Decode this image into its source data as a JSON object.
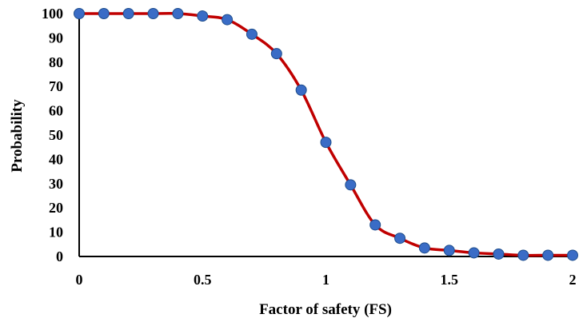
{
  "chart_data": {
    "type": "line",
    "title": "",
    "xlabel": "Factor of safety (FS)",
    "ylabel": "Probability",
    "xlim": [
      0,
      2
    ],
    "ylim": [
      0,
      100
    ],
    "x_ticks": [
      0,
      0.5,
      1,
      1.5,
      2
    ],
    "y_ticks": [
      0,
      10,
      20,
      30,
      40,
      50,
      60,
      70,
      80,
      90,
      100
    ],
    "x_tick_labels": [
      "0",
      "0.5",
      "1",
      "1.5",
      "2"
    ],
    "y_tick_labels": [
      "0",
      "10",
      "20",
      "30",
      "40",
      "50",
      "60",
      "70",
      "80",
      "90",
      "100"
    ],
    "grid": false,
    "legend": "none",
    "series": [
      {
        "x": [
          0,
          0.1,
          0.2,
          0.3,
          0.4,
          0.5,
          0.6,
          0.7,
          0.8,
          0.9,
          1.0,
          1.1,
          1.2,
          1.3,
          1.4,
          1.5,
          1.6,
          1.7,
          1.8,
          1.9,
          2.0
        ],
        "y": [
          100,
          100,
          100,
          100,
          100,
          99,
          97.5,
          91.5,
          83.5,
          68.5,
          47,
          29.5,
          13,
          7.5,
          3.5,
          2.5,
          1.5,
          1,
          0.5,
          0.5,
          0.5
        ],
        "line_color": "#c00000",
        "marker_color": "#3a6cc6",
        "marker_edge": "#1f4e8c"
      }
    ]
  }
}
